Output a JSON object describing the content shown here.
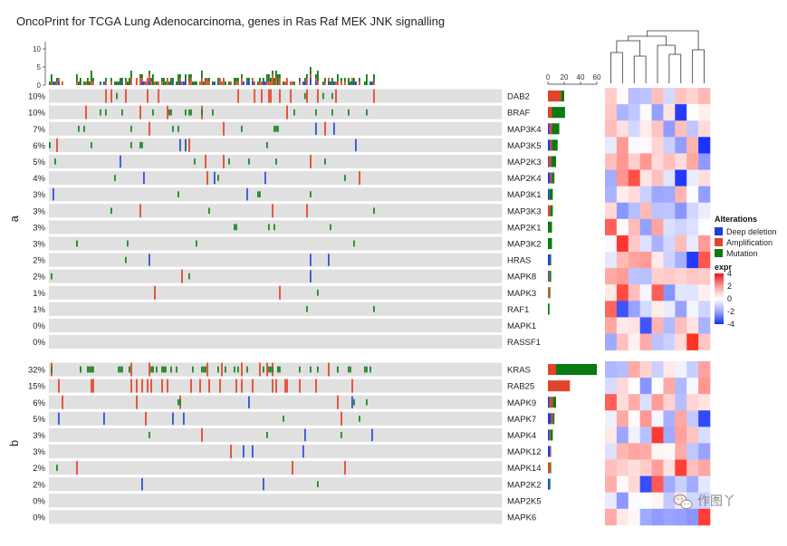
{
  "chart_data": {
    "type": "heatmap",
    "title": "OncoPrint for TCGA Lung Adenocarcinoma, genes in Ras Raf MEK JNK signalling",
    "top_axis_ticks": [
      0,
      5,
      10
    ],
    "right_axis_ticks": [
      0,
      20,
      40,
      60
    ],
    "groups": [
      {
        "name": "a",
        "genes": [
          {
            "gene": "DAB2",
            "pct": "10%",
            "del": 0,
            "amp": 16,
            "mut": 4
          },
          {
            "gene": "BRAF",
            "pct": "10%",
            "del": 0,
            "amp": 5,
            "mut": 16
          },
          {
            "gene": "MAP3K4",
            "pct": "7%",
            "del": 2,
            "amp": 3,
            "mut": 9
          },
          {
            "gene": "MAP3K5",
            "pct": "6%",
            "del": 3,
            "amp": 2,
            "mut": 7
          },
          {
            "gene": "MAP2K3",
            "pct": "5%",
            "del": 1,
            "amp": 3,
            "mut": 6
          },
          {
            "gene": "MAP2K4",
            "pct": "4%",
            "del": 3,
            "amp": 2,
            "mut": 3
          },
          {
            "gene": "MAP3K1",
            "pct": "3%",
            "del": 2,
            "amp": 0,
            "mut": 4
          },
          {
            "gene": "MAP3K3",
            "pct": "3%",
            "del": 0,
            "amp": 3,
            "mut": 3
          },
          {
            "gene": "MAP2K1",
            "pct": "3%",
            "del": 0,
            "amp": 0,
            "mut": 5
          },
          {
            "gene": "MAP3K2",
            "pct": "3%",
            "del": 0,
            "amp": 0,
            "mut": 5
          },
          {
            "gene": "HRAS",
            "pct": "2%",
            "del": 3,
            "amp": 0,
            "mut": 1
          },
          {
            "gene": "MAPK8",
            "pct": "2%",
            "del": 1,
            "amp": 1,
            "mut": 2
          },
          {
            "gene": "MAPK3",
            "pct": "1%",
            "del": 0,
            "amp": 2,
            "mut": 1
          },
          {
            "gene": "RAF1",
            "pct": "1%",
            "del": 0,
            "amp": 0,
            "mut": 2
          },
          {
            "gene": "MAPK1",
            "pct": "0%",
            "del": 0,
            "amp": 0,
            "mut": 0
          },
          {
            "gene": "RASSF1",
            "pct": "0%",
            "del": 0,
            "amp": 0,
            "mut": 0
          }
        ]
      },
      {
        "name": "b",
        "genes": [
          {
            "gene": "KRAS",
            "pct": "32%",
            "del": 0,
            "amp": 10,
            "mut": 50
          },
          {
            "gene": "RAB25",
            "pct": "15%",
            "del": 0,
            "amp": 27,
            "mut": 0
          },
          {
            "gene": "MAPK9",
            "pct": "6%",
            "del": 2,
            "amp": 4,
            "mut": 4
          },
          {
            "gene": "MAPK7",
            "pct": "5%",
            "del": 4,
            "amp": 2,
            "mut": 2
          },
          {
            "gene": "MAPK4",
            "pct": "3%",
            "del": 2,
            "amp": 1,
            "mut": 3
          },
          {
            "gene": "MAPK12",
            "pct": "3%",
            "del": 3,
            "amp": 1,
            "mut": 0
          },
          {
            "gene": "MAPK14",
            "pct": "2%",
            "del": 0,
            "amp": 3,
            "mut": 1
          },
          {
            "gene": "MAP2K2",
            "pct": "2%",
            "del": 2,
            "amp": 0,
            "mut": 1
          },
          {
            "gene": "MAP2K5",
            "pct": "0%",
            "del": 0,
            "amp": 0,
            "mut": 0
          },
          {
            "gene": "MAPK6",
            "pct": "0%",
            "del": 0,
            "amp": 0,
            "mut": 0
          }
        ]
      }
    ],
    "legend": {
      "alterations_title": "Alterations",
      "alterations": [
        {
          "name": "Deep deletion",
          "color": "#1f3fd6"
        },
        {
          "name": "Amplification",
          "color": "#e0452b"
        },
        {
          "name": "Mutation",
          "color": "#0b7a12"
        }
      ],
      "expr_title": "expr",
      "expr_ticks": [
        "4",
        "2",
        "0",
        "-2",
        "-4"
      ]
    },
    "colors": {
      "cell_bg": "#dcdcdc",
      "deletion": "#1f3fd6",
      "amplification": "#e0452b",
      "mutation": "#0b7a12"
    },
    "heatmap_columns": 9
  },
  "watermark": "作图丫"
}
